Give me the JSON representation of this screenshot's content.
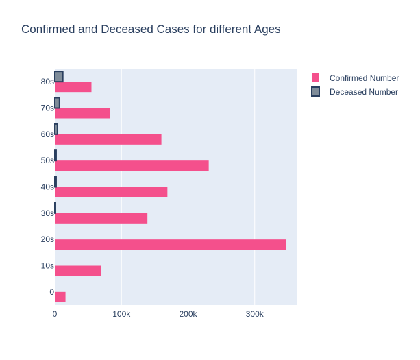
{
  "chart_data": {
    "type": "bar",
    "orientation": "horizontal",
    "title": "Confirmed and Deceased Cases for different Ages",
    "categories": [
      "0",
      "10s",
      "20s",
      "30s",
      "40s",
      "50s",
      "60s",
      "70s",
      "80s"
    ],
    "series": [
      {
        "name": "Confirmed Number",
        "values": [
          16000,
          69000,
          347000,
          139000,
          169000,
          231000,
          160000,
          83000,
          55000
        ],
        "color": "#f4508c"
      },
      {
        "name": "Deceased Number",
        "values": [
          0,
          0,
          0,
          1000,
          2000,
          2000,
          4000,
          7000,
          12000
        ],
        "color": "#7f8c99",
        "outline": "#2a3f5f"
      }
    ],
    "xlim": [
      0,
      363000
    ],
    "x_ticks": [
      0,
      100000,
      200000,
      300000
    ],
    "x_tick_labels": [
      "0",
      "100k",
      "200k",
      "300k"
    ],
    "xlabel": "",
    "ylabel": "",
    "grid": true,
    "plot_background": "#e5ecf6",
    "legend_position": "top-right"
  }
}
